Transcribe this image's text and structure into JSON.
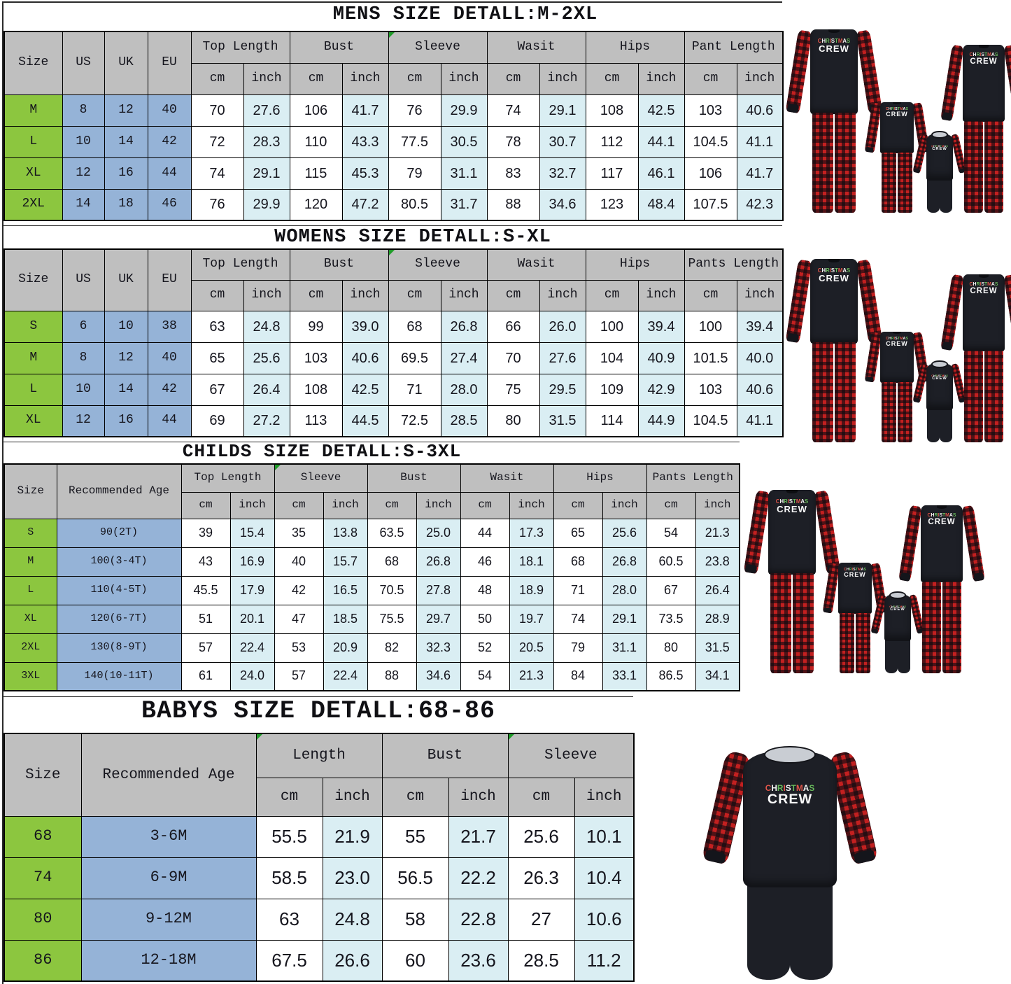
{
  "palette": {
    "header_gray": "#bfbfbf",
    "size_green": "#8cc63f",
    "meta_blue": "#95b3d7",
    "light_blue": "#daeef3",
    "plaid_red": "#c32020",
    "pajama_black": "#1d1f26",
    "graphic_letter_colors": [
      "#e2574c",
      "#f5f5f5",
      "#69b95c"
    ]
  },
  "pajamas": {
    "graphic_line1": "CHRISTMAS",
    "graphic_line2": "CREW"
  },
  "tables": {
    "mens": {
      "title": "MENS SIZE DETALL:M-2XL",
      "left_headers": [
        "Size",
        "US",
        "UK",
        "EU"
      ],
      "groups": [
        "Top Length",
        "Bust",
        "Sleeve",
        "Wasit",
        "Hips",
        "Pant Length"
      ],
      "flagged_groups": [
        "Sleeve"
      ],
      "sub_headers": [
        "cm",
        "inch"
      ],
      "rows": [
        {
          "size": "M",
          "left": [
            "8",
            "12",
            "40"
          ],
          "values": [
            "70",
            "27.6",
            "106",
            "41.7",
            "76",
            "29.9",
            "74",
            "29.1",
            "108",
            "42.5",
            "103",
            "40.6"
          ]
        },
        {
          "size": "L",
          "left": [
            "10",
            "14",
            "42"
          ],
          "values": [
            "72",
            "28.3",
            "110",
            "43.3",
            "77.5",
            "30.5",
            "78",
            "30.7",
            "112",
            "44.1",
            "104.5",
            "41.1"
          ]
        },
        {
          "size": "XL",
          "left": [
            "12",
            "16",
            "44"
          ],
          "values": [
            "74",
            "29.1",
            "115",
            "45.3",
            "79",
            "31.1",
            "83",
            "32.7",
            "117",
            "46.1",
            "106",
            "41.7"
          ]
        },
        {
          "size": "2XL",
          "left": [
            "14",
            "18",
            "46"
          ],
          "values": [
            "76",
            "29.9",
            "120",
            "47.2",
            "80.5",
            "31.7",
            "88",
            "34.6",
            "123",
            "48.4",
            "107.5",
            "42.3"
          ]
        }
      ]
    },
    "womens": {
      "title": "WOMENS SIZE DETALL:S-XL",
      "left_headers": [
        "Size",
        "US",
        "UK",
        "EU"
      ],
      "groups": [
        "Top Length",
        "Bust",
        "Sleeve",
        "Wasit",
        "Hips",
        "Pants Length"
      ],
      "flagged_groups": [
        "Sleeve"
      ],
      "sub_headers": [
        "cm",
        "inch"
      ],
      "rows": [
        {
          "size": "S",
          "left": [
            "6",
            "10",
            "38"
          ],
          "values": [
            "63",
            "24.8",
            "99",
            "39.0",
            "68",
            "26.8",
            "66",
            "26.0",
            "100",
            "39.4",
            "100",
            "39.4"
          ]
        },
        {
          "size": "M",
          "left": [
            "8",
            "12",
            "40"
          ],
          "values": [
            "65",
            "25.6",
            "103",
            "40.6",
            "69.5",
            "27.4",
            "70",
            "27.6",
            "104",
            "40.9",
            "101.5",
            "40.0"
          ]
        },
        {
          "size": "L",
          "left": [
            "10",
            "14",
            "42"
          ],
          "values": [
            "67",
            "26.4",
            "108",
            "42.5",
            "71",
            "28.0",
            "75",
            "29.5",
            "109",
            "42.9",
            "103",
            "40.6"
          ]
        },
        {
          "size": "XL",
          "left": [
            "12",
            "16",
            "44"
          ],
          "values": [
            "69",
            "27.2",
            "113",
            "44.5",
            "72.5",
            "28.5",
            "80",
            "31.5",
            "114",
            "44.9",
            "104.5",
            "41.1"
          ]
        }
      ]
    },
    "childs": {
      "title": "CHILDS SIZE DETALL:S-3XL",
      "left_headers": [
        "Size",
        "Recommended Age"
      ],
      "groups": [
        "Top Length",
        "Sleeve",
        "Bust",
        "Wasit",
        "Hips",
        "Pants Length"
      ],
      "flagged_groups": [
        "Sleeve"
      ],
      "sub_headers": [
        "cm",
        "inch"
      ],
      "rows": [
        {
          "size": "S",
          "left": [
            "90(2T)"
          ],
          "values": [
            "39",
            "15.4",
            "35",
            "13.8",
            "63.5",
            "25.0",
            "44",
            "17.3",
            "65",
            "25.6",
            "54",
            "21.3"
          ]
        },
        {
          "size": "M",
          "left": [
            "100(3-4T)"
          ],
          "values": [
            "43",
            "16.9",
            "40",
            "15.7",
            "68",
            "26.8",
            "46",
            "18.1",
            "68",
            "26.8",
            "60.5",
            "23.8"
          ]
        },
        {
          "size": "L",
          "left": [
            "110(4-5T)"
          ],
          "values": [
            "45.5",
            "17.9",
            "42",
            "16.5",
            "70.5",
            "27.8",
            "48",
            "18.9",
            "71",
            "28.0",
            "67",
            "26.4"
          ]
        },
        {
          "size": "XL",
          "left": [
            "120(6-7T)"
          ],
          "values": [
            "51",
            "20.1",
            "47",
            "18.5",
            "75.5",
            "29.7",
            "50",
            "19.7",
            "74",
            "29.1",
            "73.5",
            "28.9"
          ]
        },
        {
          "size": "2XL",
          "left": [
            "130(8-9T)"
          ],
          "values": [
            "57",
            "22.4",
            "53",
            "20.9",
            "82",
            "32.3",
            "52",
            "20.5",
            "79",
            "31.1",
            "80",
            "31.5"
          ]
        },
        {
          "size": "3XL",
          "left": [
            "140(10-11T)"
          ],
          "values": [
            "61",
            "24.0",
            "57",
            "22.4",
            "88",
            "34.6",
            "54",
            "21.3",
            "84",
            "33.1",
            "86.5",
            "34.1"
          ]
        }
      ]
    },
    "babys": {
      "title": "BABYS SIZE DETALL:68-86",
      "left_headers": [
        "Size",
        "Recommended Age"
      ],
      "groups": [
        "Length",
        "Bust",
        "Sleeve"
      ],
      "flagged_groups": [
        "Length",
        "Sleeve"
      ],
      "sub_headers": [
        "cm",
        "inch"
      ],
      "rows": [
        {
          "size": "68",
          "left": [
            "3-6M"
          ],
          "values": [
            "55.5",
            "21.9",
            "55",
            "21.7",
            "25.6",
            "10.1"
          ]
        },
        {
          "size": "74",
          "left": [
            "6-9M"
          ],
          "values": [
            "58.5",
            "23.0",
            "56.5",
            "22.2",
            "26.3",
            "10.4"
          ]
        },
        {
          "size": "80",
          "left": [
            "9-12M"
          ],
          "values": [
            "63",
            "24.8",
            "58",
            "22.8",
            "27",
            "10.6"
          ]
        },
        {
          "size": "86",
          "left": [
            "12-18M"
          ],
          "values": [
            "67.5",
            "26.6",
            "60",
            "23.6",
            "28.5",
            "11.2"
          ]
        }
      ]
    }
  }
}
